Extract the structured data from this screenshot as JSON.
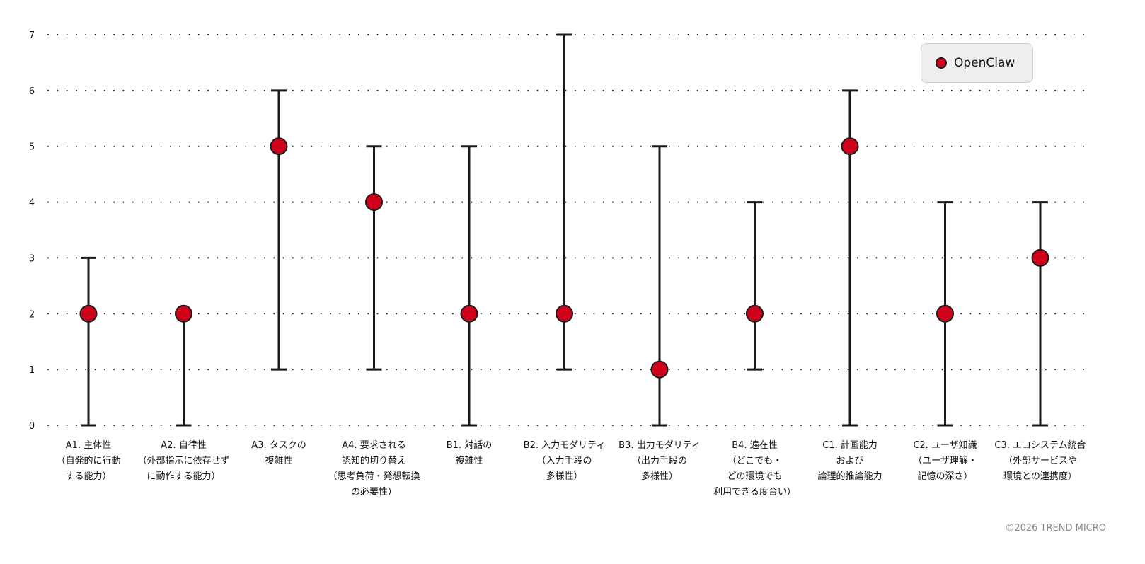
{
  "chart_data": {
    "type": "errorbar",
    "ylim": [
      0,
      7
    ],
    "yticks": [
      "0",
      "1",
      "2",
      "3",
      "4",
      "5",
      "6",
      "7"
    ],
    "grid": "horizontal-dotted",
    "legend_position": "top-right",
    "categories": [
      [
        "A1. 主体性",
        "（自発的に行動",
        "する能力）"
      ],
      [
        "A2. 自律性",
        "（外部指示に依存せず",
        "に動作する能力）"
      ],
      [
        "A3. タスクの",
        "複雑性"
      ],
      [
        "A4. 要求される",
        "認知的切り替え",
        "（思考負荷・発想転換",
        "の必要性）"
      ],
      [
        "B1. 対話の",
        "複雑性"
      ],
      [
        "B2. 入力モダリティ",
        "（入力手段の",
        "多様性）"
      ],
      [
        "B3. 出力モダリティ",
        "（出力手段の",
        "多様性）"
      ],
      [
        "B4. 遍在性",
        "（どこでも・",
        "どの環境でも",
        "利用できる度合い）"
      ],
      [
        "C1. 計画能力",
        "および",
        "論理的推論能力"
      ],
      [
        "C2. ユーザ知識",
        "（ユーザ理解・",
        "記憶の深さ）"
      ],
      [
        "C3. エコシステム統合",
        "（外部サービスや",
        "環境との連携度）"
      ]
    ],
    "series": [
      {
        "name": "OpenClaw",
        "color": "#d0021b",
        "values": [
          2,
          2,
          5,
          4,
          2,
          2,
          1,
          2,
          5,
          2,
          3
        ],
        "min": [
          0,
          0,
          1,
          1,
          0,
          1,
          0,
          1,
          0,
          0,
          0
        ],
        "max": [
          3,
          2,
          6,
          5,
          5,
          7,
          5,
          4,
          6,
          4,
          4
        ]
      }
    ]
  },
  "legend": {
    "label": "OpenClaw"
  },
  "footer": {
    "copyright": "©2026 TREND MICRO"
  }
}
